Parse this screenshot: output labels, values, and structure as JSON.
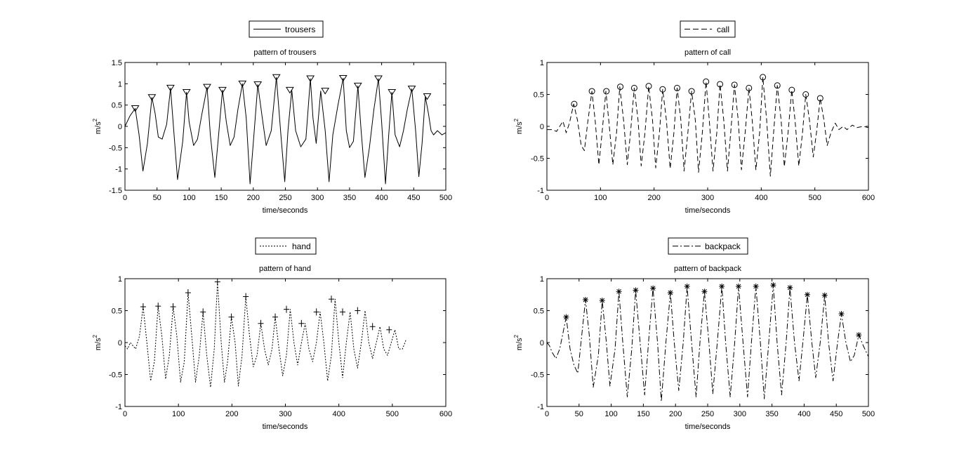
{
  "chart_data": [
    {
      "type": "line",
      "title": "pattern of trousers",
      "xlabel": "time/seconds",
      "ylabel": "m/s",
      "ylabel_sup": "2",
      "xlim": [
        0,
        500
      ],
      "ylim": [
        -1.5,
        1.5
      ],
      "xticks": [
        0,
        50,
        100,
        150,
        200,
        250,
        300,
        350,
        400,
        450,
        500
      ],
      "yticks": [
        -1.5,
        -1,
        -0.5,
        0,
        0.5,
        1,
        1.5
      ],
      "legend": "top-center",
      "series": [
        {
          "name": "trousers",
          "line_style": "solid",
          "marker": "triangle-down",
          "x": [
            0,
            8,
            16,
            22,
            28,
            35,
            42,
            47,
            52,
            58,
            65,
            71,
            76,
            82,
            90,
            96,
            100,
            107,
            113,
            120,
            128,
            133,
            140,
            146,
            152,
            158,
            164,
            170,
            176,
            183,
            189,
            195,
            201,
            207,
            214,
            220,
            228,
            236,
            243,
            249,
            254,
            260,
            266,
            274,
            282,
            289,
            293,
            298,
            305,
            312,
            318,
            324,
            332,
            340,
            345,
            350,
            356,
            363,
            368,
            374,
            381,
            388,
            395,
            400,
            406,
            411,
            416,
            421,
            428,
            434,
            440,
            447,
            453,
            458,
            463,
            468,
            473,
            477,
            481,
            487,
            494,
            500
          ],
          "y": [
            0,
            0.25,
            0.42,
            -0.2,
            -1.05,
            -0.4,
            0.68,
            0.3,
            -0.25,
            -0.3,
            0.05,
            0.9,
            -0.1,
            -1.25,
            -0.35,
            0.8,
            0.1,
            -0.45,
            -0.3,
            0.3,
            0.92,
            -0.2,
            -1.2,
            -0.2,
            0.85,
            0.1,
            -0.45,
            -0.25,
            0.4,
            1.0,
            0.2,
            -1.35,
            -0.2,
            0.98,
            0.2,
            -0.45,
            -0.1,
            1.15,
            -0.2,
            -1.3,
            -0.1,
            0.85,
            -0.1,
            -0.48,
            -0.3,
            1.12,
            0.2,
            -0.4,
            0.83,
            -0.1,
            -1.3,
            -0.2,
            0.5,
            1.13,
            -0.1,
            -0.5,
            -0.35,
            0.95,
            -0.1,
            -1.2,
            -0.5,
            0.4,
            1.12,
            0.1,
            -1.35,
            -0.2,
            0.8,
            -0.2,
            -0.48,
            -0.1,
            0.4,
            0.88,
            -0.1,
            -1.18,
            -0.4,
            0.7,
            0.3,
            -0.1,
            -0.2,
            -0.1,
            -0.2,
            -0.15
          ],
          "markers_x": [
            16,
            42,
            71,
            96,
            128,
            152,
            183,
            207,
            236,
            257,
            289,
            312,
            340,
            363,
            395,
            416,
            447,
            471
          ],
          "markers_y": [
            0.42,
            0.68,
            0.9,
            0.8,
            0.92,
            0.85,
            1.0,
            0.98,
            1.15,
            0.85,
            1.12,
            0.83,
            1.13,
            0.95,
            1.12,
            0.8,
            0.88,
            0.7
          ]
        }
      ]
    },
    {
      "type": "line",
      "title": "pattern of call",
      "xlabel": "time/seconds",
      "ylabel": "m/s",
      "ylabel_sup": "2",
      "xlim": [
        0,
        600
      ],
      "ylim": [
        -1,
        1
      ],
      "xticks": [
        0,
        100,
        200,
        300,
        400,
        500,
        600
      ],
      "yticks": [
        -1,
        -0.5,
        0,
        0.5,
        1
      ],
      "legend": "top-center",
      "series": [
        {
          "name": "call",
          "line_style": "dashed",
          "marker": "circle",
          "x": [
            0,
            10,
            18,
            24,
            30,
            36,
            42,
            50,
            57,
            64,
            70,
            76,
            84,
            90,
            97,
            103,
            110,
            116,
            123,
            130,
            136,
            143,
            150,
            156,
            163,
            170,
            176,
            183,
            190,
            197,
            203,
            210,
            216,
            223,
            230,
            237,
            243,
            250,
            256,
            263,
            270,
            277,
            283,
            290,
            297,
            303,
            310,
            317,
            323,
            330,
            337,
            343,
            350,
            357,
            363,
            370,
            377,
            383,
            390,
            397,
            403,
            410,
            417,
            423,
            430,
            437,
            443,
            450,
            457,
            463,
            470,
            477,
            483,
            490,
            497,
            503,
            510,
            517,
            523,
            530,
            538,
            545,
            553,
            560,
            570,
            578,
            590,
            600
          ],
          "y": [
            -0.05,
            -0.05,
            -0.08,
            0.0,
            0.08,
            -0.1,
            0.05,
            0.35,
            0.1,
            -0.3,
            -0.38,
            0.05,
            0.55,
            0.1,
            -0.6,
            -0.1,
            0.55,
            0.05,
            -0.6,
            -0.1,
            0.62,
            0.1,
            -0.6,
            -0.1,
            0.6,
            0.1,
            -0.62,
            -0.1,
            0.63,
            0.1,
            -0.65,
            -0.1,
            0.58,
            0.1,
            -0.66,
            -0.1,
            0.6,
            0.1,
            -0.7,
            -0.1,
            0.55,
            0.1,
            -0.72,
            -0.1,
            0.7,
            0.1,
            -0.7,
            -0.1,
            0.66,
            0.1,
            -0.7,
            -0.1,
            0.65,
            0.1,
            -0.68,
            -0.1,
            0.6,
            0.1,
            -0.68,
            -0.1,
            0.77,
            0.1,
            -0.78,
            -0.1,
            0.64,
            0.1,
            -0.63,
            -0.1,
            0.57,
            0.1,
            -0.62,
            -0.1,
            0.5,
            0.1,
            -0.48,
            -0.1,
            0.44,
            0.1,
            -0.3,
            -0.1,
            0.05,
            -0.05,
            0.0,
            -0.05,
            0.02,
            -0.02,
            0.0,
            -0.02
          ],
          "markers_x": [
            51,
            84,
            111,
            137,
            163,
            190,
            216,
            243,
            270,
            297,
            323,
            350,
            377,
            403,
            430,
            457,
            483,
            510
          ],
          "markers_y": [
            0.35,
            0.55,
            0.55,
            0.62,
            0.6,
            0.63,
            0.58,
            0.6,
            0.55,
            0.7,
            0.66,
            0.65,
            0.6,
            0.77,
            0.64,
            0.57,
            0.5,
            0.44
          ]
        }
      ]
    },
    {
      "type": "line",
      "title": "pattern of hand",
      "xlabel": "time/seconds",
      "ylabel": "m/s",
      "ylabel_sup": "2",
      "xlim": [
        0,
        600
      ],
      "ylim": [
        -1,
        1
      ],
      "xticks": [
        0,
        100,
        200,
        300,
        400,
        500,
        600
      ],
      "yticks": [
        -1,
        -0.5,
        0,
        0.5,
        1
      ],
      "legend": "top-center",
      "series": [
        {
          "name": "hand",
          "line_style": "dotted",
          "marker": "plus",
          "x": [
            0,
            5,
            10,
            15,
            20,
            27,
            34,
            41,
            48,
            55,
            62,
            69,
            76,
            83,
            90,
            97,
            104,
            111,
            118,
            125,
            132,
            139,
            146,
            153,
            160,
            167,
            173,
            180,
            186,
            192,
            199,
            206,
            212,
            219,
            226,
            233,
            240,
            247,
            254,
            261,
            268,
            275,
            281,
            288,
            295,
            302,
            309,
            316,
            323,
            330,
            337,
            344,
            351,
            358,
            365,
            372,
            379,
            386,
            393,
            400,
            407,
            414,
            421,
            428,
            435,
            442,
            449,
            456,
            463,
            470,
            477,
            484,
            491,
            498,
            505,
            512,
            519,
            526
          ],
          "y": [
            -0.05,
            -0.1,
            0.0,
            -0.05,
            -0.1,
            0.1,
            0.56,
            0.0,
            -0.6,
            -0.3,
            0.57,
            0.1,
            -0.57,
            -0.2,
            0.56,
            0.1,
            -0.62,
            -0.3,
            0.78,
            0.1,
            -0.62,
            -0.2,
            0.48,
            -0.2,
            -0.7,
            -0.1,
            0.95,
            0.0,
            -0.62,
            -0.3,
            0.4,
            0.0,
            -0.68,
            -0.2,
            0.72,
            0.1,
            -0.38,
            -0.2,
            0.3,
            -0.1,
            -0.35,
            -0.1,
            0.4,
            -0.1,
            -0.52,
            -0.2,
            0.52,
            0.0,
            -0.35,
            0.0,
            0.3,
            -0.1,
            -0.3,
            0.0,
            0.48,
            0.0,
            -0.6,
            -0.2,
            0.68,
            0.0,
            -0.55,
            0.0,
            0.48,
            -0.1,
            -0.4,
            0.0,
            0.5,
            0.0,
            -0.25,
            0.0,
            0.25,
            -0.1,
            -0.2,
            0.0,
            0.2,
            -0.1,
            -0.1,
            0.05
          ],
          "markers_x": [
            34,
            62,
            90,
            118,
            146,
            173,
            199,
            226,
            254,
            281,
            302,
            330,
            358,
            386,
            407,
            435,
            463,
            494
          ],
          "markers_y": [
            0.56,
            0.57,
            0.56,
            0.78,
            0.48,
            0.95,
            0.4,
            0.72,
            0.3,
            0.4,
            0.52,
            0.3,
            0.48,
            0.68,
            0.48,
            0.5,
            0.25,
            0.2
          ]
        }
      ]
    },
    {
      "type": "line",
      "title": "pattern of backpack",
      "xlabel": "time/seconds",
      "ylabel": "m/s",
      "ylabel_sup": "2",
      "xlim": [
        0,
        500
      ],
      "ylim": [
        -1,
        1
      ],
      "xticks": [
        0,
        50,
        100,
        150,
        200,
        250,
        300,
        350,
        400,
        450,
        500
      ],
      "yticks": [
        -1,
        -0.5,
        0,
        0.5,
        1
      ],
      "legend": "top-center",
      "series": [
        {
          "name": "backpack",
          "line_style": "dash-dot",
          "marker": "asterisk",
          "x": [
            0,
            4,
            8,
            14,
            20,
            26,
            30,
            36,
            42,
            48,
            54,
            60,
            66,
            72,
            80,
            86,
            92,
            98,
            106,
            112,
            118,
            125,
            132,
            138,
            145,
            152,
            158,
            165,
            172,
            178,
            185,
            192,
            198,
            205,
            212,
            218,
            225,
            232,
            238,
            245,
            252,
            258,
            265,
            272,
            278,
            285,
            292,
            298,
            305,
            312,
            318,
            325,
            332,
            338,
            345,
            352,
            358,
            365,
            372,
            378,
            385,
            392,
            398,
            405,
            412,
            418,
            425,
            432,
            438,
            445,
            452,
            458,
            465,
            472,
            478,
            485,
            492,
            500
          ],
          "y": [
            0.0,
            -0.05,
            -0.15,
            -0.25,
            -0.1,
            0.2,
            0.4,
            -0.1,
            -0.35,
            -0.48,
            0.1,
            0.67,
            0.1,
            -0.7,
            -0.2,
            0.66,
            0.05,
            -0.68,
            -0.1,
            0.8,
            0.0,
            -0.85,
            -0.1,
            0.82,
            0.0,
            -0.82,
            0.0,
            0.85,
            0.0,
            -0.92,
            0.0,
            0.78,
            0.0,
            -0.75,
            0.0,
            0.88,
            0.0,
            -0.85,
            0.0,
            0.8,
            0.0,
            -0.8,
            0.0,
            0.88,
            0.0,
            -0.85,
            0.0,
            0.88,
            0.0,
            -0.85,
            0.0,
            0.88,
            0.0,
            -0.88,
            0.0,
            0.9,
            0.0,
            -0.82,
            0.0,
            0.86,
            0.0,
            -0.6,
            0.0,
            0.75,
            0.0,
            -0.55,
            0.0,
            0.74,
            0.0,
            -0.6,
            0.0,
            0.45,
            0.0,
            -0.3,
            -0.2,
            0.12,
            -0.05,
            -0.22
          ],
          "markers_x": [
            30,
            60,
            86,
            112,
            138,
            165,
            192,
            218,
            245,
            272,
            298,
            325,
            352,
            378,
            405,
            432,
            458,
            485
          ],
          "markers_y": [
            0.4,
            0.67,
            0.66,
            0.8,
            0.82,
            0.85,
            0.78,
            0.88,
            0.8,
            0.88,
            0.88,
            0.88,
            0.9,
            0.86,
            0.75,
            0.74,
            0.45,
            0.12
          ]
        }
      ]
    }
  ]
}
